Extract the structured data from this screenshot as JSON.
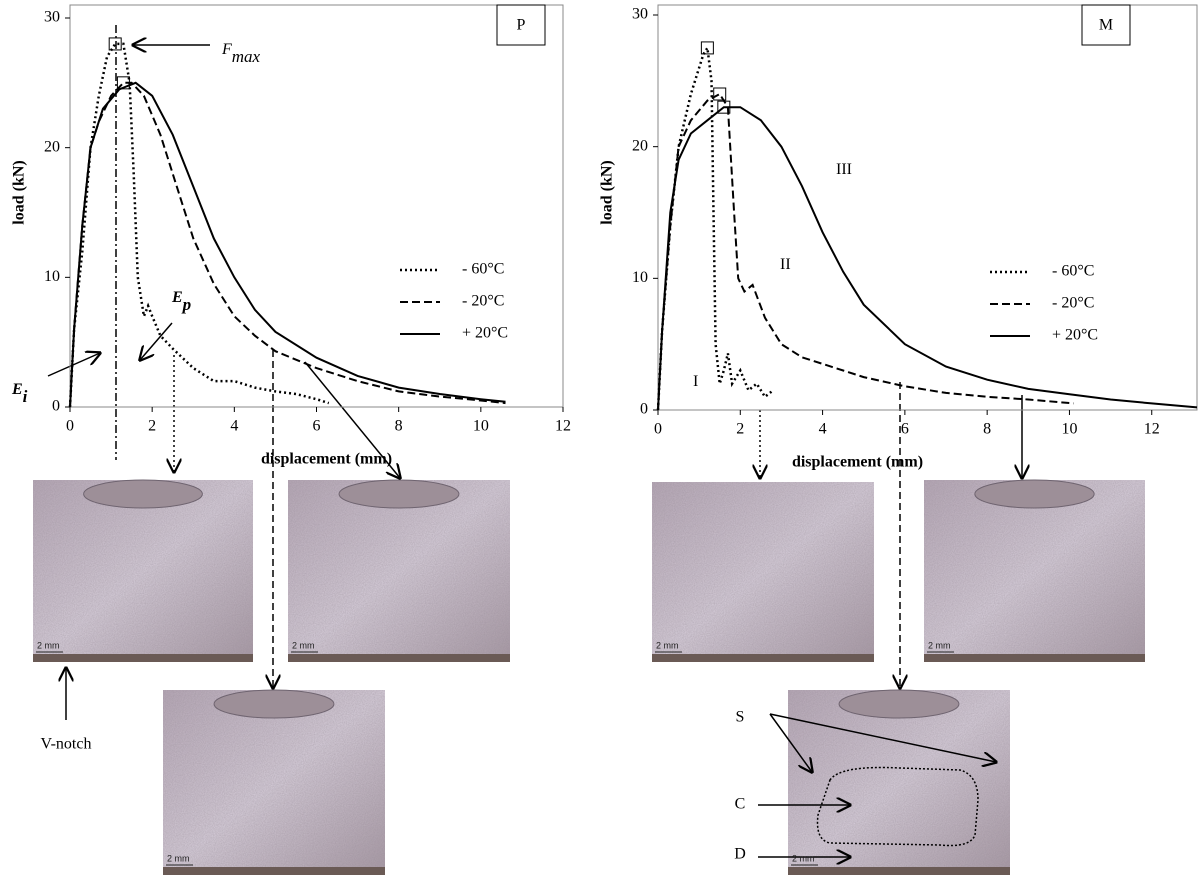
{
  "chart_data": [
    {
      "type": "line",
      "panel_label": "P",
      "xlabel": "displacement (mm)",
      "ylabel": "load (kN)",
      "xlim": [
        0,
        12
      ],
      "ylim": [
        0,
        30
      ],
      "xticks": [
        0,
        2,
        4,
        6,
        8,
        10,
        12
      ],
      "yticks": [
        0,
        10,
        20,
        30
      ],
      "legend_position": "center right",
      "series": [
        {
          "name": "- 60°C",
          "style": "dotted",
          "color": "#000",
          "peak_marker": true,
          "x": [
            0,
            0.1,
            0.3,
            0.5,
            0.7,
            0.9,
            1.1,
            1.3,
            1.45,
            1.55,
            1.65,
            1.8,
            1.9,
            2.0,
            2.2,
            2.5,
            3,
            3.5,
            4,
            4.5,
            5,
            5.5,
            6,
            6.3
          ],
          "values": [
            0,
            6,
            12,
            20,
            24,
            27,
            28,
            28,
            25,
            18,
            10,
            7,
            7.8,
            7,
            5.5,
            4.5,
            3,
            2,
            2,
            1.5,
            1.2,
            1,
            0.6,
            0.3
          ]
        },
        {
          "name": "- 20°C",
          "style": "dashed",
          "color": "#000",
          "peak_marker": true,
          "x": [
            0,
            0.1,
            0.3,
            0.5,
            0.7,
            1,
            1.3,
            1.5,
            1.8,
            2.2,
            2.6,
            3,
            3.5,
            4,
            4.5,
            5,
            6,
            7,
            8,
            9,
            10,
            10.6
          ],
          "values": [
            0,
            6,
            14,
            20,
            22,
            24,
            25,
            25,
            24,
            21,
            17,
            13,
            9.5,
            7,
            5.5,
            4.3,
            3,
            2,
            1.2,
            0.8,
            0.5,
            0.3
          ]
        },
        {
          "name": "+ 20°C",
          "style": "solid",
          "color": "#000",
          "peak_marker": false,
          "x": [
            0,
            0.1,
            0.3,
            0.5,
            0.8,
            1.2,
            1.6,
            2,
            2.5,
            3,
            3.5,
            4,
            4.5,
            5,
            6,
            7,
            8,
            9,
            10,
            10.6
          ],
          "values": [
            0,
            6,
            14,
            20,
            23,
            24.5,
            25,
            24,
            21,
            17,
            13,
            10,
            7.5,
            5.8,
            3.8,
            2.4,
            1.5,
            1,
            0.6,
            0.4
          ]
        }
      ],
      "annotations": [
        {
          "text": "F",
          "sub": "max"
        },
        {
          "text": "E",
          "sub": "i"
        },
        {
          "text": "E",
          "sub": "p"
        }
      ]
    },
    {
      "type": "line",
      "panel_label": "M",
      "xlabel": "displacement (mm)",
      "ylabel": "load (kN)",
      "xlim": [
        0,
        13.1
      ],
      "ylim": [
        0,
        30
      ],
      "xticks": [
        0,
        2,
        4,
        6,
        8,
        10,
        12
      ],
      "yticks": [
        0,
        10,
        20,
        30
      ],
      "legend_position": "center right",
      "series": [
        {
          "name": "- 60°C",
          "style": "dotted",
          "color": "#000",
          "peak_marker": true,
          "x": [
            0,
            0.1,
            0.3,
            0.5,
            0.8,
            1.1,
            1.2,
            1.3,
            1.35,
            1.4,
            1.5,
            1.6,
            1.7,
            1.8,
            2,
            2.2,
            2.4,
            2.6,
            2.8
          ],
          "values": [
            0,
            6,
            14,
            20,
            24,
            27,
            27.5,
            25,
            15,
            5,
            2,
            3,
            4.3,
            2,
            3,
            1.5,
            2,
            1,
            1.5
          ]
        },
        {
          "name": "- 20°C",
          "style": "dashed",
          "color": "#000",
          "peak_marker": true,
          "x": [
            0,
            0.1,
            0.3,
            0.5,
            0.8,
            1.2,
            1.5,
            1.7,
            1.85,
            1.95,
            2.1,
            2.3,
            2.6,
            3,
            3.5,
            4,
            4.5,
            5,
            6,
            7,
            8,
            9,
            10.1
          ],
          "values": [
            0,
            6,
            14,
            20,
            22,
            23.5,
            24,
            23,
            15,
            10,
            9,
            9.5,
            7,
            5,
            4,
            3.5,
            3,
            2.5,
            1.8,
            1.3,
            1,
            0.8,
            0.5
          ]
        },
        {
          "name": "+ 20°C",
          "style": "solid",
          "color": "#000",
          "peak_marker": true,
          "x": [
            0,
            0.1,
            0.3,
            0.5,
            0.8,
            1.2,
            1.6,
            2,
            2.5,
            3,
            3.5,
            4,
            4.5,
            5,
            6,
            7,
            8,
            9,
            10,
            11,
            12,
            13.1
          ],
          "values": [
            0,
            6,
            15,
            19,
            21,
            22,
            23,
            23,
            22,
            20,
            17,
            13.5,
            10.5,
            8,
            5,
            3.3,
            2.3,
            1.6,
            1.2,
            0.8,
            0.5,
            0.2
          ]
        }
      ],
      "annotations": [
        {
          "text": "I"
        },
        {
          "text": "II"
        },
        {
          "text": "III"
        }
      ]
    }
  ],
  "figure": {
    "photos": [
      {
        "scale_label": "2 mm"
      },
      {
        "scale_label": "2 mm"
      },
      {
        "scale_label": "2 mm"
      },
      {
        "scale_label": "2 mm"
      },
      {
        "scale_label": "2 mm"
      },
      {
        "scale_label": "2 mm"
      }
    ],
    "labels": [
      "V-notch",
      "S",
      "C",
      "D"
    ]
  }
}
